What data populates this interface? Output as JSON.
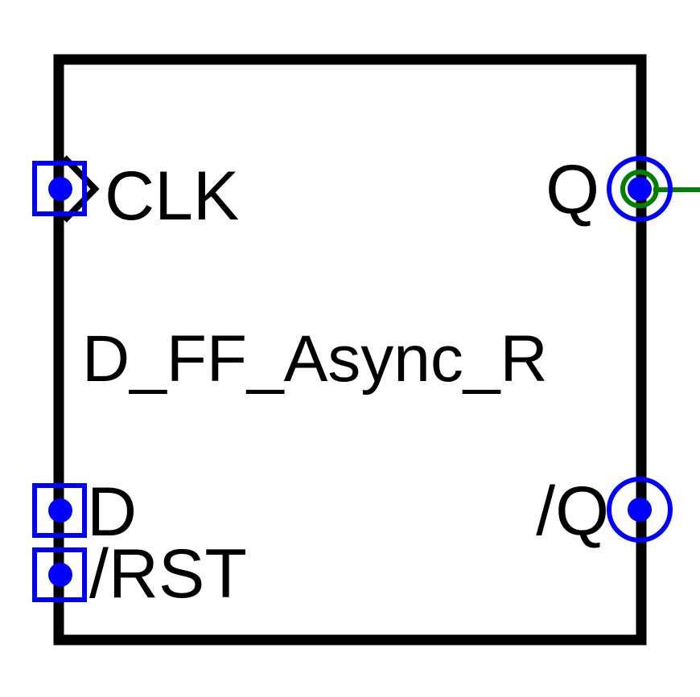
{
  "component": {
    "name": "D_FF_Async_R"
  },
  "pins": {
    "clk": {
      "label": "CLK",
      "side": "left",
      "clock_marker": true
    },
    "d": {
      "label": "D",
      "side": "left"
    },
    "rst": {
      "label": "/RST",
      "side": "left"
    },
    "q": {
      "label": "Q",
      "side": "right",
      "connected": true
    },
    "qn": {
      "label": "/Q",
      "side": "right"
    }
  },
  "colors": {
    "body_outline": "#000000",
    "input_pin": "#0000ff",
    "output_pin": "#0000ff",
    "connection": "#008000",
    "text": "#000000"
  }
}
